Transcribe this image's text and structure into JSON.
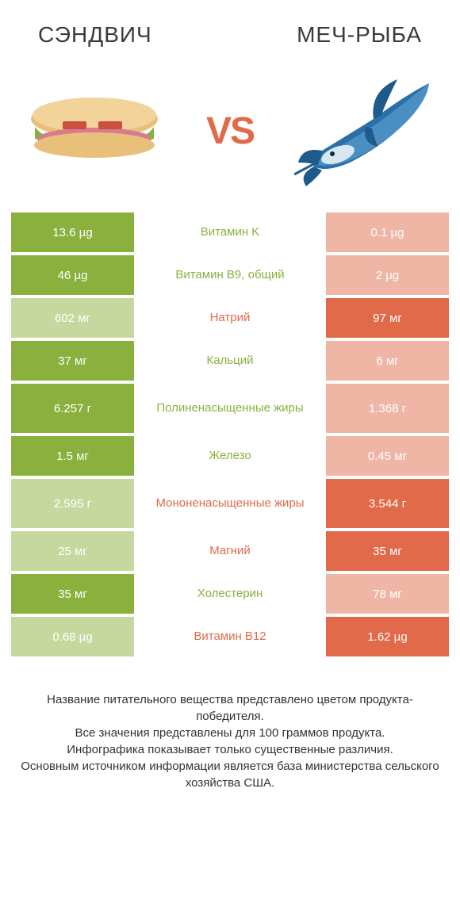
{
  "colors": {
    "green": "#8ab03e",
    "orange": "#e06a49",
    "pale_green": "#c7d89f",
    "pale_orange": "#f0b6a5",
    "text": "#3a3a3a",
    "white": "#ffffff"
  },
  "header": {
    "left_title": "СЭНДВИЧ",
    "right_title": "МЕЧ-РЫБА"
  },
  "vs_label": "VS",
  "rows": [
    {
      "label": "Витамин K",
      "left": "13.6 µg",
      "right": "0.1 µg",
      "winner": "left",
      "tall": false
    },
    {
      "label": "Витамин B9, общий",
      "left": "46 µg",
      "right": "2 µg",
      "winner": "left",
      "tall": false
    },
    {
      "label": "Натрий",
      "left": "602 мг",
      "right": "97 мг",
      "winner": "right",
      "tall": false
    },
    {
      "label": "Кальций",
      "left": "37 мг",
      "right": "6 мг",
      "winner": "left",
      "tall": false
    },
    {
      "label": "Полиненасыщенные жиры",
      "left": "6.257 г",
      "right": "1.368 г",
      "winner": "left",
      "tall": true
    },
    {
      "label": "Железо",
      "left": "1.5 мг",
      "right": "0.45 мг",
      "winner": "left",
      "tall": false
    },
    {
      "label": "Мононенасыщенные жиры",
      "left": "2.595 г",
      "right": "3.544 г",
      "winner": "right",
      "tall": true
    },
    {
      "label": "Магний",
      "left": "25 мг",
      "right": "35 мг",
      "winner": "right",
      "tall": false
    },
    {
      "label": "Холестерин",
      "left": "35 мг",
      "right": "78 мг",
      "winner": "left",
      "tall": false
    },
    {
      "label": "Витамин B12",
      "left": "0.68 µg",
      "right": "1.62 µg",
      "winner": "right",
      "tall": false
    }
  ],
  "footer_lines": [
    "Название питательного вещества представлено цветом продукта-победителя.",
    "Все значения представлены для 100 граммов продукта.",
    "Инфографика показывает только существенные различия.",
    "Основным источником информации является база министерства сельского хозяйства США."
  ]
}
